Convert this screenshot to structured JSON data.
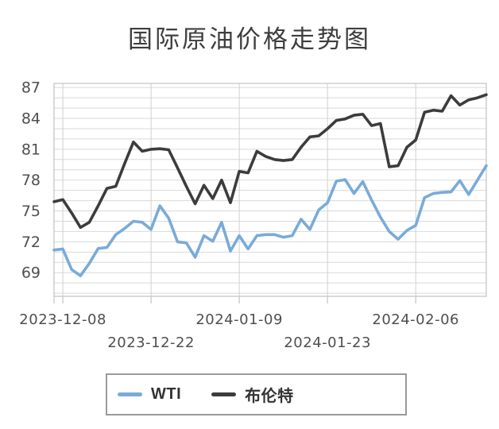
{
  "title": "国际原油价格走势图",
  "colors": {
    "wti": "#79ABD9",
    "brent": "#3C3C3C",
    "grid": "#D9D9D9",
    "vgrid": "#D0D0D0",
    "border": "#C2C2C2",
    "tick": "#C7CDD6",
    "axis_text": "#4F4F4F",
    "legend_border": "#9A9A9A"
  },
  "legend": {
    "items": [
      {
        "label": "WTI",
        "color": "#79ABD9"
      },
      {
        "label": "布伦特",
        "color": "#3C3C3C"
      }
    ]
  },
  "chart_data": {
    "type": "line",
    "title": "国际原油价格走势图",
    "xlabel": "",
    "ylabel": "",
    "ylim": [
      66.7,
      87.4
    ],
    "grid": true,
    "legend_position": "bottom",
    "y_ticks": [
      69,
      72,
      75,
      78,
      81,
      84,
      87
    ],
    "x_tick_labels": [
      "2023-12-08",
      "2023-12-22",
      "2024-01-09",
      "2024-01-23",
      "2024-02-06"
    ],
    "x_tick_indices": [
      1,
      11,
      21,
      31,
      41
    ],
    "series": [
      {
        "name": "WTI",
        "color": "#79ABD9",
        "values": [
          71.2,
          71.3,
          69.3,
          68.7,
          69.9,
          71.35,
          71.45,
          72.7,
          73.3,
          74.0,
          73.9,
          73.2,
          75.5,
          74.3,
          72.0,
          71.9,
          70.5,
          72.6,
          72.05,
          73.9,
          71.1,
          72.6,
          71.3,
          72.6,
          72.7,
          72.7,
          72.45,
          72.6,
          74.2,
          73.2,
          75.1,
          75.8,
          77.9,
          78.05,
          76.7,
          77.85,
          76.05,
          74.4,
          73.0,
          72.25,
          73.1,
          73.6,
          76.3,
          76.7,
          76.8,
          76.85,
          77.95,
          76.6,
          78.0,
          79.4
        ]
      },
      {
        "name": "布伦特",
        "color": "#3C3C3C",
        "values": [
          75.9,
          76.1,
          74.8,
          73.4,
          73.9,
          75.5,
          77.2,
          77.4,
          79.6,
          81.7,
          80.8,
          81.0,
          81.05,
          80.95,
          79.2,
          77.4,
          75.7,
          77.5,
          76.2,
          78.0,
          75.8,
          78.85,
          78.7,
          80.8,
          80.3,
          80.0,
          79.9,
          80.0,
          81.2,
          82.2,
          82.3,
          83.0,
          83.8,
          83.95,
          84.3,
          84.4,
          83.3,
          83.5,
          79.3,
          79.4,
          81.2,
          81.9,
          84.6,
          84.8,
          84.7,
          86.2,
          85.3,
          85.8,
          86.0,
          86.3
        ]
      }
    ]
  }
}
